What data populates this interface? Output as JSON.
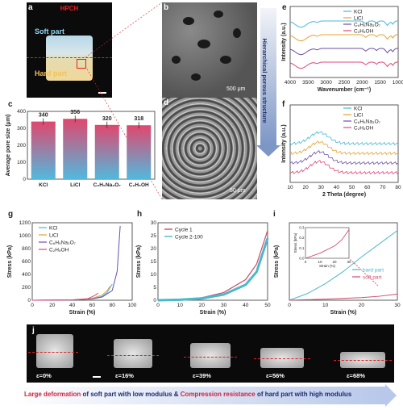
{
  "panel_labels": {
    "a": "a",
    "b": "b",
    "c": "c",
    "d": "d",
    "e": "e",
    "f": "f",
    "g": "g",
    "h": "h",
    "i": "i",
    "j": "j"
  },
  "panel_a": {
    "title": "HPCH",
    "soft_label": "Soft part",
    "hard_label": "Hard part"
  },
  "panel_b": {
    "scale": "500 μm"
  },
  "panel_d": {
    "scale": "50 μm"
  },
  "arrow_text": "Hierarchical porous structure",
  "colors": {
    "KCl": "#45b8d8",
    "LiCl": "#e6a12e",
    "C6H5Na3O7": "#6b4fa8",
    "C2H5OH": "#e0457b",
    "cycle1": "#d04a6e",
    "cycle2": "#4ab8c8",
    "hard": "#4ab8c8",
    "soft": "#d04a6e"
  },
  "chart_data": [
    {
      "panel": "c",
      "type": "bar",
      "categories": [
        "KCl",
        "LiCl",
        "C₆H₅Na₃O₇",
        "C₂H₅OH"
      ],
      "values": [
        340,
        356,
        320,
        318
      ],
      "ylabel": "Average pore size (μm)",
      "ylim": [
        0,
        400
      ],
      "yticks": [
        "0",
        "100",
        "200",
        "300",
        "400"
      ]
    },
    {
      "panel": "e",
      "type": "line",
      "xlabel": "Wavenumber (cm⁻¹)",
      "ylabel": "Intensity (a.u.)",
      "xticks": [
        "4000",
        "3500",
        "3000",
        "2500",
        "2000",
        "1500",
        "1000"
      ],
      "series": [
        {
          "name": "KCl"
        },
        {
          "name": "LiCl"
        },
        {
          "name": "C₆H₅Na₃O₇"
        },
        {
          "name": "C₂H₅OH"
        }
      ]
    },
    {
      "panel": "f",
      "type": "line",
      "xlabel": "2 Theta (degree)",
      "ylabel": "Intensity (a.u.)",
      "xticks": [
        "10",
        "20",
        "30",
        "40",
        "50",
        "60",
        "70",
        "80"
      ],
      "series": [
        {
          "name": "KCl"
        },
        {
          "name": "LiCl"
        },
        {
          "name": "C₆H₅Na₃O₇"
        },
        {
          "name": "C₂H₅OH"
        }
      ]
    },
    {
      "panel": "g",
      "type": "line",
      "xlabel": "Strain (%)",
      "ylabel": "Stress (kPa)",
      "xlim": [
        0,
        100
      ],
      "ylim": [
        0,
        1200
      ],
      "xticks": [
        "0",
        "20",
        "40",
        "60",
        "80",
        "100"
      ],
      "yticks": [
        "0",
        "200",
        "400",
        "600",
        "800",
        "1000",
        "1200"
      ],
      "series": [
        {
          "name": "KCl",
          "x": [
            0,
            40,
            60,
            70,
            75,
            80
          ],
          "y": [
            0,
            5,
            25,
            60,
            120,
            250
          ]
        },
        {
          "name": "LiCl",
          "x": [
            0,
            40,
            60,
            70,
            75,
            78
          ],
          "y": [
            0,
            6,
            30,
            80,
            150,
            220
          ]
        },
        {
          "name": "C₆H₅Na₃O₇",
          "x": [
            0,
            40,
            60,
            70,
            80,
            85,
            88
          ],
          "y": [
            0,
            4,
            20,
            50,
            150,
            450,
            1150
          ]
        },
        {
          "name": "C₂H₅OH",
          "x": [
            0,
            40,
            55,
            62,
            66
          ],
          "y": [
            0,
            4,
            20,
            70,
            110
          ]
        }
      ]
    },
    {
      "panel": "h",
      "type": "line",
      "xlabel": "Strain (%)",
      "ylabel": "Stress (kPa)",
      "xlim": [
        0,
        50
      ],
      "ylim": [
        0,
        30
      ],
      "xticks": [
        "0",
        "10",
        "20",
        "30",
        "40",
        "50"
      ],
      "yticks": [
        "0",
        "5",
        "10",
        "15",
        "20",
        "25",
        "30"
      ],
      "series": [
        {
          "name": "Cycle 1",
          "x": [
            0,
            10,
            20,
            30,
            40,
            45,
            50
          ],
          "y": [
            0,
            0.3,
            1,
            3,
            8,
            14,
            27
          ]
        },
        {
          "name": "Cycle 2-100",
          "x": [
            0,
            10,
            20,
            30,
            40,
            45,
            50
          ],
          "y": [
            0,
            0.2,
            0.7,
            2.2,
            6,
            11,
            24
          ]
        }
      ]
    },
    {
      "panel": "i",
      "type": "line",
      "xlabel": "Strain (%)",
      "ylabel": "Stress (kPa)",
      "xlim": [
        0,
        30
      ],
      "ylim": [
        0,
        3.5
      ],
      "xticks": [
        "0",
        "10",
        "20",
        "30"
      ],
      "series": [
        {
          "name": "hard part",
          "x": [
            0,
            5,
            10,
            15,
            20,
            25,
            30
          ],
          "y": [
            0,
            0.3,
            0.75,
            1.3,
            1.95,
            2.55,
            3.15
          ]
        },
        {
          "name": "soft part",
          "x": [
            0,
            10,
            20,
            25,
            30
          ],
          "y": [
            0,
            0.05,
            0.12,
            0.18,
            0.28
          ]
        }
      ],
      "inset": {
        "xlabel": "Strain (%)",
        "ylabel": "Stress (kPa)",
        "xticks": [
          "0",
          "10",
          "20",
          "30"
        ],
        "yticks": [
          "0.0",
          "0.1",
          "0.2",
          "0.3"
        ]
      }
    }
  ],
  "panel_j": {
    "strains": [
      "ε=0%",
      "ε=16%",
      "ε=39%",
      "ε=56%",
      "ε=68%"
    ]
  },
  "caption": {
    "part1": "Large deformation",
    "part2": " of soft part with low modulus & ",
    "part3": "Compression resistance",
    "part4": " of hard part with high modulus"
  }
}
